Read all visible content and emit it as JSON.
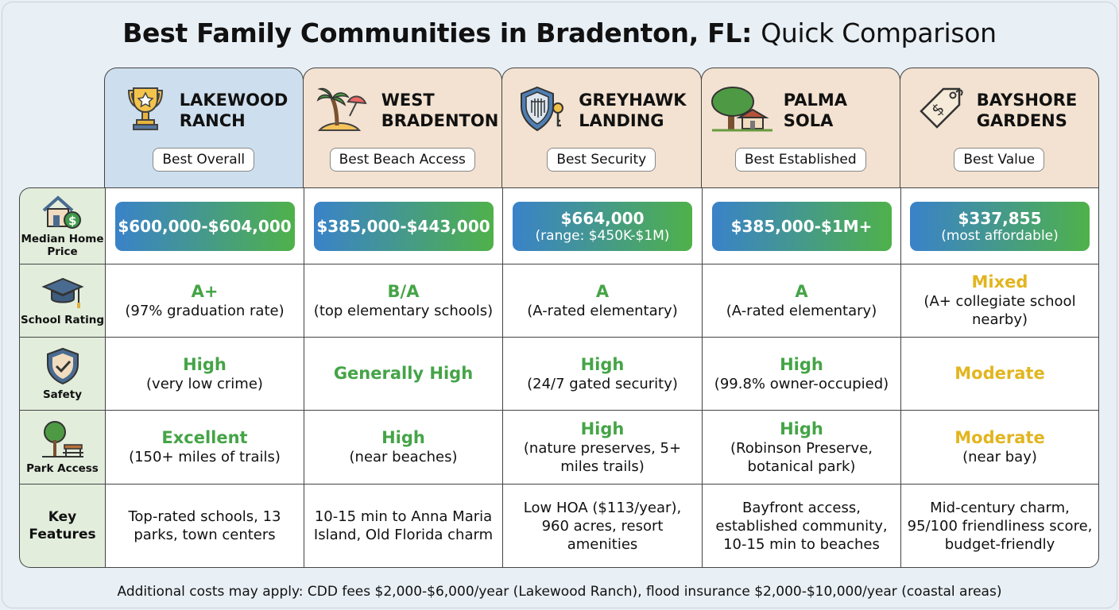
{
  "title": {
    "bold": "Best Family Communities in Bradenton, FL:",
    "light": "Quick Comparison"
  },
  "colors": {
    "green": "#45a447",
    "yellow": "#e2b51f",
    "header_blue": "#cddfee",
    "header_beige": "#f3e2d1",
    "label_green": "#e2eddc"
  },
  "communities": [
    {
      "name": "LAKEWOOD RANCH",
      "badge": "Best Overall",
      "icon": "trophy-icon"
    },
    {
      "name": "WEST BRADENTON",
      "badge": "Best Beach Access",
      "icon": "palm-beach-icon"
    },
    {
      "name": "GREYHAWK LANDING",
      "badge": "Best Security",
      "icon": "shield-key-icon"
    },
    {
      "name": "PALMA SOLA",
      "badge": "Best Established",
      "icon": "tree-house-icon"
    },
    {
      "name": "BAYSHORE GARDENS",
      "badge": "Best Value",
      "icon": "price-tag-icon"
    }
  ],
  "rows": [
    {
      "label": "Median Home Price",
      "icon": "house-dollar-icon",
      "type": "price",
      "cells": [
        {
          "value": "$600,000-$604,000"
        },
        {
          "value": "$385,000-$443,000"
        },
        {
          "value": "$664,000",
          "note": "(range: $450K-$1M)"
        },
        {
          "value": "$385,000-$1M+"
        },
        {
          "value": "$337,855",
          "note": "(most affordable)"
        }
      ]
    },
    {
      "label": "School Rating",
      "icon": "graduation-cap-icon",
      "type": "rating",
      "cells": [
        {
          "value": "A+",
          "note": "(97% graduation rate)",
          "color": "green"
        },
        {
          "value": "B/A",
          "note": "(top elementary schools)",
          "color": "green"
        },
        {
          "value": "A",
          "note": "(A-rated elementary)",
          "color": "green"
        },
        {
          "value": "A",
          "note": "(A-rated elementary)",
          "color": "green"
        },
        {
          "value": "Mixed",
          "note": "(A+ collegiate school nearby)",
          "color": "yellow"
        }
      ]
    },
    {
      "label": "Safety",
      "icon": "shield-check-icon",
      "type": "rating",
      "cells": [
        {
          "value": "High",
          "note": "(very low crime)",
          "color": "green"
        },
        {
          "value": "Generally High",
          "color": "green"
        },
        {
          "value": "High",
          "note": "(24/7 gated security)",
          "color": "green"
        },
        {
          "value": "High",
          "note": "(99.8% owner-occupied)",
          "color": "green"
        },
        {
          "value": "Moderate",
          "color": "yellow"
        }
      ]
    },
    {
      "label": "Park Access",
      "icon": "park-icon",
      "type": "rating",
      "cells": [
        {
          "value": "Excellent",
          "note": "(150+ miles of trails)",
          "color": "green"
        },
        {
          "value": "High",
          "note": "(near beaches)",
          "color": "green"
        },
        {
          "value": "High",
          "note": "(nature preserves, 5+ miles trails)",
          "color": "green"
        },
        {
          "value": "High",
          "note": "(Robinson Preserve, botanical park)",
          "color": "green"
        },
        {
          "value": "Moderate",
          "note": "(near bay)",
          "color": "yellow"
        }
      ]
    },
    {
      "label": "Key Features",
      "type": "text",
      "cells": [
        {
          "note": "Top-rated schools, 13 parks, town centers"
        },
        {
          "note": "10-15 min to Anna Maria Island, Old Florida charm"
        },
        {
          "note": "Low HOA ($113/year), 960 acres, resort amenities"
        },
        {
          "note": "Bayfront access, established community, 10-15 min to beaches"
        },
        {
          "note": "Mid-century charm, 95/100 friendliness score, budget-friendly"
        }
      ]
    }
  ],
  "footer": "Additional costs may apply: CDD fees $2,000-$6,000/year (Lakewood Ranch), flood insurance $2,000-$10,000/year (coastal areas)"
}
